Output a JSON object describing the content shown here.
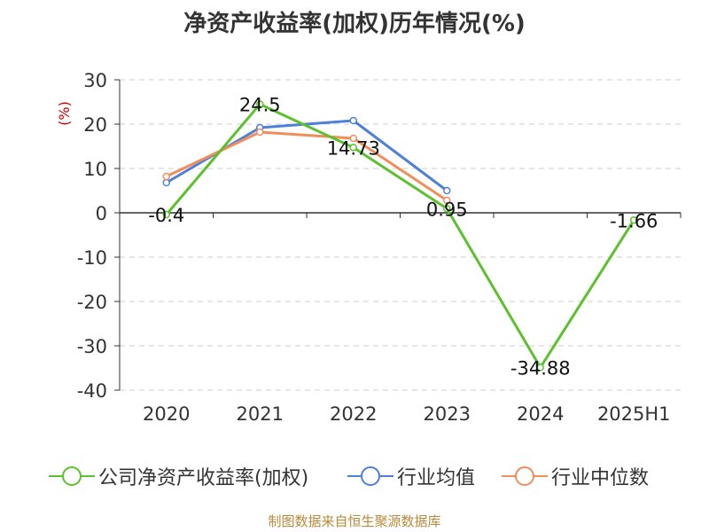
{
  "title": "净资产收益率(加权)历年情况(%)",
  "footer": "制图数据来自恒生聚源数据库",
  "chart_data": {
    "type": "line",
    "title": "净资产收益率(加权)历年情况(%)",
    "ylabel": "(%)",
    "xlabel": "",
    "categories": [
      "2020",
      "2021",
      "2022",
      "2023",
      "2024",
      "2025H1"
    ],
    "ylim": [
      -40,
      30
    ],
    "yticks": [
      30,
      20,
      10,
      0,
      -10,
      -20,
      -30,
      -40
    ],
    "grid": true,
    "legend_position": "bottom",
    "series": [
      {
        "name": "公司净资产收益率(加权)",
        "color": "#5bc12c",
        "values": [
          -0.4,
          24.5,
          14.73,
          0.95,
          -34.88,
          -1.66
        ],
        "labels": [
          "-0.4",
          "24.5",
          "14.73",
          "0.95",
          "-34.88",
          "-1.66"
        ]
      },
      {
        "name": "行业均值",
        "color": "#4e7fd9",
        "values": [
          6.8,
          19.2,
          20.8,
          5.0,
          null,
          null
        ]
      },
      {
        "name": "行业中位数",
        "color": "#f08e5b",
        "values": [
          8.2,
          18.2,
          16.8,
          2.8,
          null,
          null
        ]
      }
    ]
  }
}
